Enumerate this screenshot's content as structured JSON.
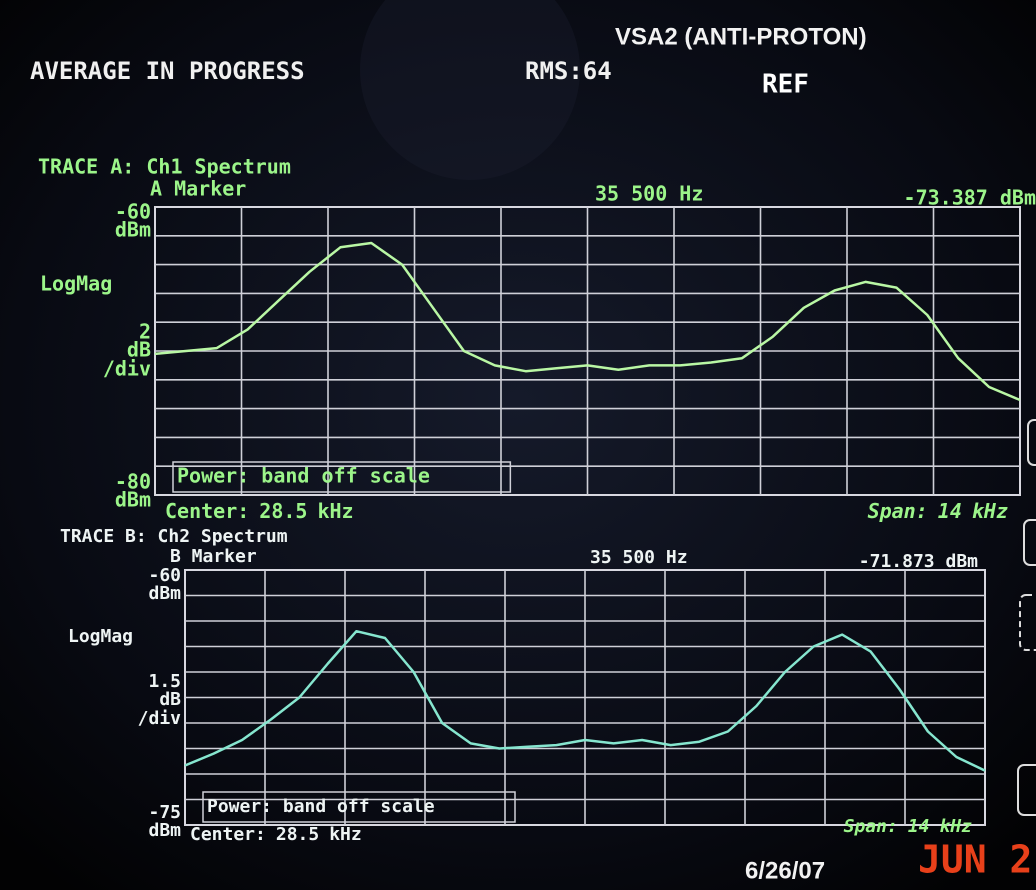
{
  "header": {
    "instrument": "VSA2 (ANTI-PROTON)",
    "status": "AVERAGE IN PROGRESS",
    "average": "RMS:64",
    "ref": "REF"
  },
  "chart_data": [
    {
      "type": "line",
      "title": "TRACE A: Ch1 Spectrum",
      "marker_label": "A Marker",
      "marker_freq": "35 500 Hz",
      "marker_value": "-73.387 dBm",
      "format": "LogMag",
      "scale": 2,
      "scale_unit": "dB",
      "scale_suffix": "/div",
      "y_unit": "dBm",
      "ylim": [
        -80,
        -60
      ],
      "yticks": [
        -60,
        -80
      ],
      "annotation": "Power: band off scale",
      "center_label": "Center:",
      "center": 28.5,
      "center_unit": "kHz",
      "span_label": "Span:",
      "span": 14,
      "span_unit": "kHz",
      "color": "#b9f7a4",
      "x": [
        21.5,
        22,
        22.5,
        23,
        23.5,
        24,
        24.5,
        25,
        25.5,
        26,
        26.5,
        27,
        27.5,
        28,
        28.5,
        29,
        29.5,
        30,
        30.5,
        31,
        31.5,
        32,
        32.5,
        33,
        33.5,
        34,
        34.5,
        35,
        35.5
      ],
      "values": [
        -70.2,
        -70.0,
        -69.8,
        -68.5,
        -66.5,
        -64.5,
        -62.8,
        -62.5,
        -64.0,
        -67.0,
        -70.0,
        -71.0,
        -71.4,
        -71.2,
        -71.0,
        -71.3,
        -71.0,
        -71.0,
        -70.8,
        -70.5,
        -69.0,
        -67.0,
        -65.8,
        -65.2,
        -65.6,
        -67.5,
        -70.5,
        -72.5,
        -73.4
      ]
    },
    {
      "type": "line",
      "title": "TRACE B: Ch2 Spectrum",
      "marker_label": "B Marker",
      "marker_freq": "35 500 Hz",
      "marker_value": "-71.873 dBm",
      "format": "LogMag",
      "scale": 1.5,
      "scale_unit": "dB",
      "scale_suffix": "/div",
      "y_unit": "dBm",
      "ylim": [
        -75,
        -60
      ],
      "yticks": [
        -60,
        -75
      ],
      "annotation": "Power: band off scale",
      "center_label": "Center:",
      "center": 28.5,
      "center_unit": "kHz",
      "span_label": "Span:",
      "span": 14,
      "span_unit": "kHz",
      "color": "#86e6cf",
      "x": [
        21.5,
        22,
        22.5,
        23,
        23.5,
        24,
        24.5,
        25,
        25.5,
        26,
        26.5,
        27,
        27.5,
        28,
        28.5,
        29,
        29.5,
        30,
        30.5,
        31,
        31.5,
        32,
        32.5,
        33,
        33.5,
        34,
        34.5,
        35,
        35.5
      ],
      "values": [
        -71.5,
        -70.8,
        -70.0,
        -68.8,
        -67.5,
        -65.5,
        -63.6,
        -64.0,
        -66.0,
        -69.0,
        -70.2,
        -70.5,
        -70.4,
        -70.3,
        -70.0,
        -70.2,
        -70.0,
        -70.3,
        -70.1,
        -69.5,
        -68.0,
        -66.0,
        -64.5,
        -63.8,
        -64.8,
        -67.0,
        -69.5,
        -71.0,
        -71.8
      ]
    }
  ],
  "footer": {
    "date": "6/26/07",
    "stamp": "JUN 2"
  }
}
